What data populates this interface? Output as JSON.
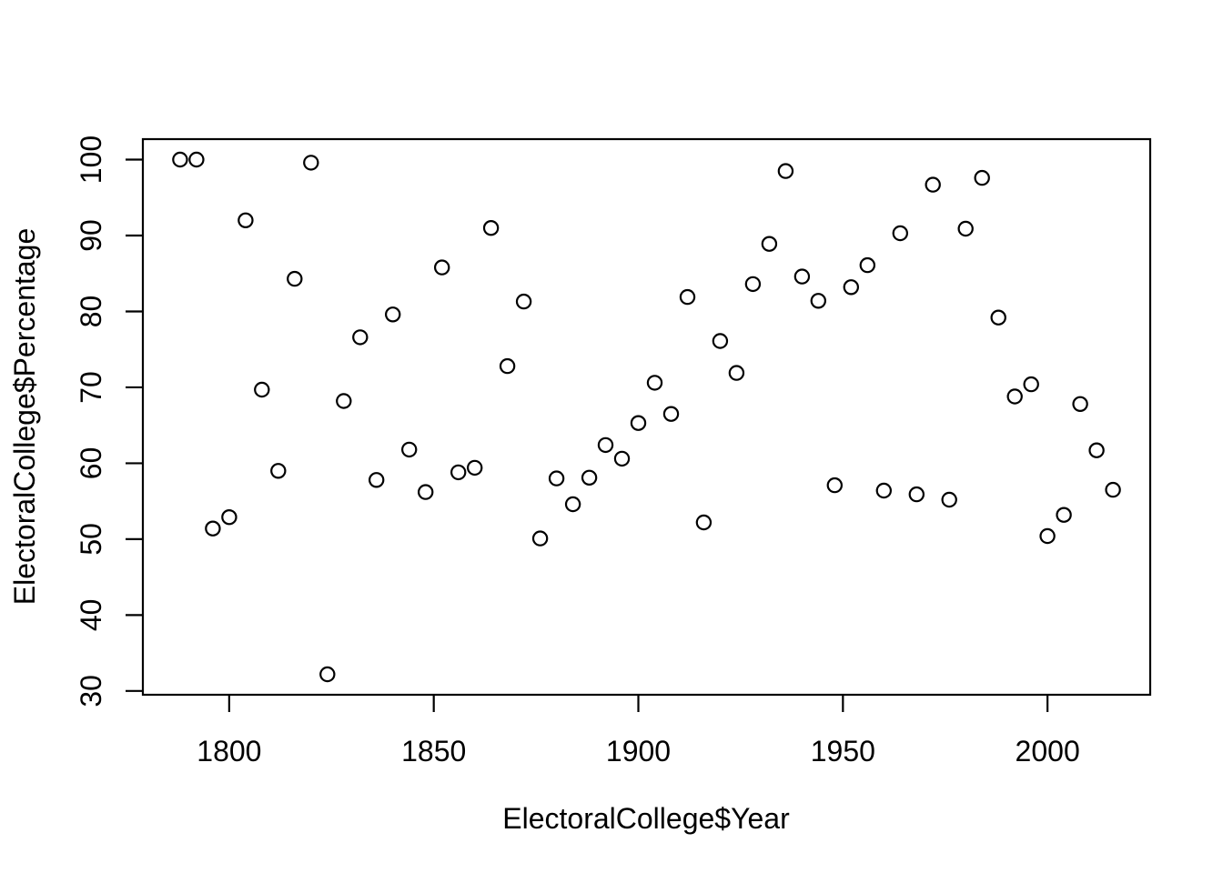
{
  "chart_data": {
    "type": "scatter",
    "title": "",
    "xlabel": "ElectoralCollege$Year",
    "ylabel": "ElectoralCollege$Percentage",
    "x_ticks": [
      1800,
      1850,
      1900,
      1950,
      2000
    ],
    "y_ticks": [
      30,
      40,
      50,
      60,
      70,
      80,
      90,
      100
    ],
    "xlim": [
      1778.9,
      2025.1
    ],
    "ylim": [
      29.5,
      102.7
    ],
    "grid": false,
    "legend": null,
    "marker": "open-circle",
    "marker_color": "#000000",
    "background_color": "#ffffff",
    "x": [
      1788,
      1792,
      1796,
      1800,
      1804,
      1808,
      1812,
      1816,
      1820,
      1824,
      1828,
      1832,
      1836,
      1840,
      1844,
      1848,
      1852,
      1856,
      1860,
      1864,
      1868,
      1872,
      1876,
      1880,
      1884,
      1888,
      1892,
      1896,
      1900,
      1904,
      1908,
      1912,
      1916,
      1920,
      1924,
      1928,
      1932,
      1936,
      1940,
      1944,
      1948,
      1952,
      1956,
      1960,
      1964,
      1968,
      1972,
      1976,
      1980,
      1984,
      1988,
      1992,
      1996,
      2000,
      2004,
      2008,
      2012,
      2016
    ],
    "y": [
      100,
      100,
      51.4,
      52.9,
      92.0,
      69.7,
      59.0,
      84.3,
      99.6,
      32.2,
      68.2,
      76.6,
      57.8,
      79.6,
      61.8,
      56.2,
      85.8,
      58.8,
      59.4,
      91.0,
      72.8,
      81.3,
      50.1,
      58.0,
      54.6,
      58.1,
      62.4,
      60.6,
      65.3,
      70.6,
      66.5,
      81.9,
      52.2,
      76.1,
      71.9,
      83.6,
      88.9,
      98.5,
      84.6,
      81.4,
      57.1,
      83.2,
      86.1,
      56.4,
      90.3,
      55.9,
      96.7,
      55.2,
      90.9,
      97.6,
      79.2,
      68.8,
      70.4,
      50.4,
      53.2,
      67.8,
      61.7,
      56.5
    ]
  }
}
